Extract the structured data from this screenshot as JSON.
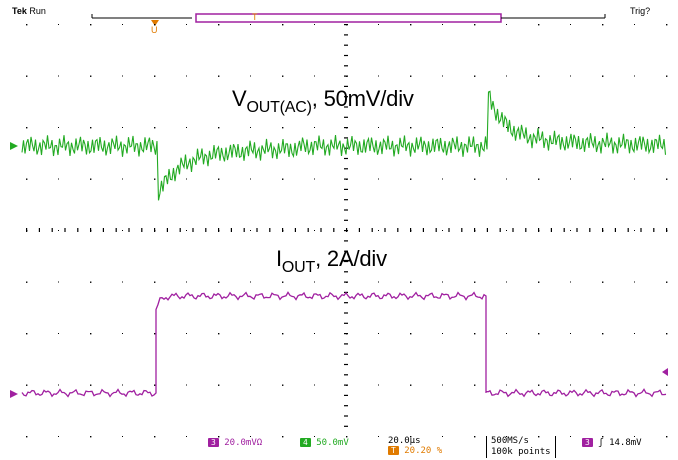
{
  "scope": {
    "brand": "Tek",
    "run_state": "Run",
    "trigger_state": "Trig?"
  },
  "annotations": {
    "vout_main": "V",
    "vout_sub": "OUT(AC)",
    "vout_scale": ", 50mV/div",
    "iout_main": "I",
    "iout_sub": "OUT",
    "iout_scale": ", 2A/div"
  },
  "status_bar": {
    "ch3_badge": "3",
    "ch3_scale": "20.0mVΩ",
    "ch4_badge": "4",
    "ch4_scale": "50.0mV",
    "timebase": "20.0µs",
    "trigger_pos": "20.20 %",
    "sample_rate": "500MS/s",
    "record_length": "100k points",
    "trig_ch_badge": "3",
    "trig_slope": "ʃ",
    "trig_level": "14.8mV"
  },
  "colors": {
    "ch_green": "#22aa22",
    "ch_magenta": "#a020a0",
    "trigger_orange": "#e07b00",
    "graticule": "#000000"
  }
}
